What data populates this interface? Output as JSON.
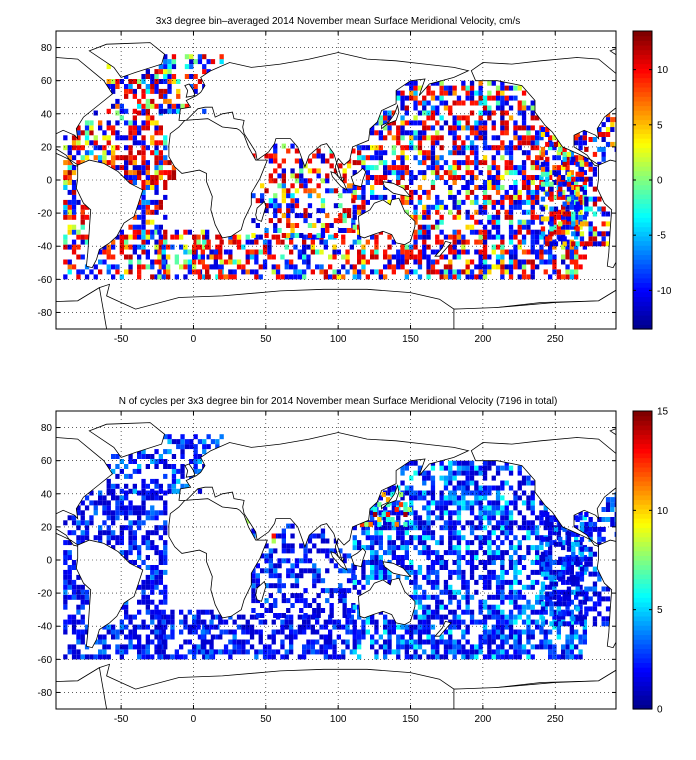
{
  "chart_data": [
    {
      "type": "heatmap",
      "title": "3x3 degree bin–averaged 2014 November mean Surface Meridional Velocity, cm/s",
      "xlabel": "",
      "ylabel": "",
      "xlim": [
        -95,
        292
      ],
      "ylim": [
        -90,
        90
      ],
      "xticks": [
        -50,
        0,
        50,
        100,
        150,
        200,
        250
      ],
      "yticks": [
        -80,
        -60,
        -40,
        -20,
        0,
        20,
        40,
        60,
        80
      ],
      "grid": true,
      "bin_size_degrees": 3,
      "colorbar": {
        "range": [
          -13.5,
          13.5
        ],
        "ticks": [
          -10,
          -5,
          0,
          5,
          10
        ],
        "colormap": [
          "#00008f",
          "#0000ff",
          "#0080ff",
          "#00ffff",
          "#80ff80",
          "#ffff00",
          "#ff8000",
          "#ff0000",
          "#800000"
        ]
      },
      "regions": [
        {
          "lon": [
            -90,
            -20
          ],
          "lat": [
            -60,
            40
          ],
          "values": [
            -12,
            12
          ],
          "density": 0.55
        },
        {
          "lon": [
            -60,
            20
          ],
          "lat": [
            40,
            75
          ],
          "values": [
            -12,
            12
          ],
          "density": 0.5
        },
        {
          "lon": [
            -90,
            -10
          ],
          "lat": [
            0,
            15
          ],
          "values": [
            5,
            13
          ],
          "density": 0.6
        },
        {
          "lon": [
            0,
            110
          ],
          "lat": [
            -60,
            -35
          ],
          "values": [
            -12,
            12
          ],
          "density": 0.5
        },
        {
          "lon": [
            40,
            110
          ],
          "lat": [
            -35,
            20
          ],
          "values": [
            -12,
            12
          ],
          "density": 0.45
        },
        {
          "lon": [
            110,
            270
          ],
          "lat": [
            -60,
            60
          ],
          "values": [
            -12,
            12
          ],
          "density": 0.6
        },
        {
          "lon": [
            240,
            292
          ],
          "lat": [
            -40,
            40
          ],
          "values": [
            -12,
            12
          ],
          "density": 0.45
        },
        {
          "lon": [
            -25,
            20
          ],
          "lat": [
            -60,
            -30
          ],
          "values": [
            -12,
            12
          ],
          "density": 0.45
        }
      ]
    },
    {
      "type": "heatmap",
      "title": "N of cycles per 3x3 degree bin for 2014 November mean Surface Meridional Velocity (7196 in total)",
      "xlabel": "",
      "ylabel": "",
      "xlim": [
        -95,
        292
      ],
      "ylim": [
        -90,
        90
      ],
      "xticks": [
        -50,
        0,
        50,
        100,
        150,
        200,
        250
      ],
      "yticks": [
        -80,
        -60,
        -40,
        -20,
        0,
        20,
        40,
        60,
        80
      ],
      "grid": true,
      "bin_size_degrees": 3,
      "total_cycles": 7196,
      "colorbar": {
        "range": [
          0,
          15
        ],
        "ticks": [
          0,
          5,
          10,
          15
        ],
        "colormap": [
          "#00008f",
          "#0000ff",
          "#0080ff",
          "#00ffff",
          "#80ff80",
          "#ffff00",
          "#ff8000",
          "#ff0000",
          "#800000"
        ]
      },
      "regions": [
        {
          "lon": [
            -90,
            -20
          ],
          "lat": [
            -60,
            40
          ],
          "values": [
            1,
            4
          ],
          "density": 0.6
        },
        {
          "lon": [
            -60,
            20
          ],
          "lat": [
            40,
            75
          ],
          "values": [
            1,
            5
          ],
          "density": 0.5
        },
        {
          "lon": [
            0,
            110
          ],
          "lat": [
            -60,
            -35
          ],
          "values": [
            1,
            4
          ],
          "density": 0.55
        },
        {
          "lon": [
            40,
            110
          ],
          "lat": [
            -35,
            20
          ],
          "values": [
            1,
            4
          ],
          "density": 0.5
        },
        {
          "lon": [
            110,
            270
          ],
          "lat": [
            -60,
            60
          ],
          "values": [
            1,
            6
          ],
          "density": 0.65
        },
        {
          "lon": [
            240,
            292
          ],
          "lat": [
            -40,
            40
          ],
          "values": [
            1,
            5
          ],
          "density": 0.5
        },
        {
          "lon": [
            -25,
            20
          ],
          "lat": [
            -60,
            -30
          ],
          "values": [
            1,
            4
          ],
          "density": 0.5
        },
        {
          "lon": [
            115,
            150
          ],
          "lat": [
            20,
            40
          ],
          "values": [
            6,
            15
          ],
          "density": 0.4
        },
        {
          "lon": [
            30,
            60
          ],
          "lat": [
            10,
            30
          ],
          "values": [
            8,
            15
          ],
          "density": 0.35
        }
      ]
    }
  ],
  "colors": {
    "land_outline": "#000000",
    "grid": "#000000",
    "background": "#ffffff"
  }
}
